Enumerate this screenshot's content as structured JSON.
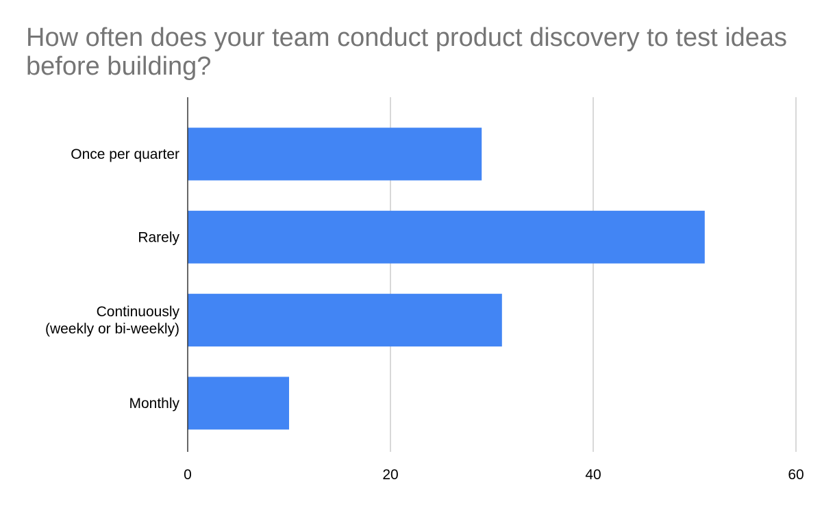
{
  "chart_data": {
    "type": "bar",
    "orientation": "horizontal",
    "title": "How often does your team conduct product discovery to test ideas before building?",
    "categories": [
      "Once per quarter",
      "Rarely",
      "Continuously\n(weekly or bi-weekly)",
      "Monthly"
    ],
    "values": [
      29,
      51,
      31,
      10
    ],
    "xlim": [
      0,
      60
    ],
    "xticks": [
      0,
      20,
      40,
      60
    ],
    "xlabel": "",
    "ylabel": "",
    "grid": "vertical",
    "legend": "none",
    "bar_color": "#4285f4"
  }
}
